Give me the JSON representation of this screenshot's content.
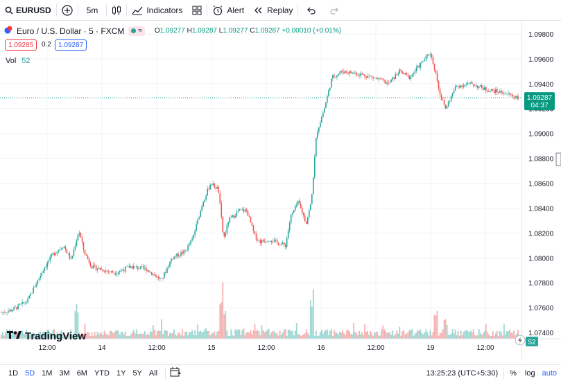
{
  "toolbar": {
    "symbol": "EURUSD",
    "interval": "5m",
    "indicators": "Indicators",
    "alert": "Alert",
    "replay": "Replay"
  },
  "legend": {
    "title": "Euro / U.S. Dollar · 5 · FXCM",
    "pill_glyph": "≈",
    "open_label": "O",
    "open": "1.09277",
    "high_label": "H",
    "high": "1.09287",
    "low_label": "L",
    "low": "1.09277",
    "close_label": "C",
    "close": "1.09287",
    "change": "+0.00010 (+0.01%)"
  },
  "quote": {
    "bid": "1.09285",
    "spread": "0.2",
    "ask": "1.09287"
  },
  "volume": {
    "label": "Vol",
    "value": "52",
    "badge": "52"
  },
  "price_axis": {
    "ticks": [
      "1.09800",
      "1.09600",
      "1.09400",
      "1.09200",
      "1.09000",
      "1.08800",
      "1.08600",
      "1.08400",
      "1.08200",
      "1.08000",
      "1.07800",
      "1.07600",
      "1.07400"
    ],
    "current_price": "1.09287",
    "countdown": "04:37"
  },
  "time_axis": {
    "ticks": [
      "12:00",
      "14",
      "12:00",
      "15",
      "12:00",
      "16",
      "12:00",
      "19",
      "12:00"
    ]
  },
  "bottom": {
    "ranges": [
      "1D",
      "5D",
      "1M",
      "3M",
      "6M",
      "YTD",
      "1Y",
      "5Y",
      "All"
    ],
    "active_range": "5D",
    "clock": "13:25:23 (UTC+5:30)",
    "percent": "%",
    "log": "log",
    "auto": "auto"
  },
  "logo": {
    "text": "TradingView"
  },
  "colors": {
    "up": "#26a69a",
    "down": "#ef5350",
    "grid": "#f0f3fa",
    "accent": "#2962ff",
    "price_label": "#089981"
  },
  "chart_data": {
    "type": "candlestick",
    "symbol": "EURUSD",
    "interval": "5m",
    "ylim": [
      1.0735,
      1.099
    ],
    "x_ticks": [
      "12:00",
      "14",
      "12:00",
      "15",
      "12:00",
      "16",
      "12:00",
      "19",
      "12:00"
    ],
    "close_path": [
      [
        0,
        1.0756
      ],
      [
        0.02,
        1.0758
      ],
      [
        0.05,
        1.0765
      ],
      [
        0.08,
        1.079
      ],
      [
        0.1,
        1.0803
      ],
      [
        0.12,
        1.081
      ],
      [
        0.135,
        1.0798
      ],
      [
        0.15,
        1.0822
      ],
      [
        0.16,
        1.0805
      ],
      [
        0.175,
        1.0793
      ],
      [
        0.2,
        1.079
      ],
      [
        0.22,
        1.0788
      ],
      [
        0.25,
        1.0793
      ],
      [
        0.28,
        1.0791
      ],
      [
        0.3,
        1.0785
      ],
      [
        0.31,
        1.0782
      ],
      [
        0.33,
        1.08
      ],
      [
        0.355,
        1.0805
      ],
      [
        0.37,
        1.0815
      ],
      [
        0.39,
        1.0845
      ],
      [
        0.405,
        1.086
      ],
      [
        0.42,
        1.0855
      ],
      [
        0.43,
        1.0815
      ],
      [
        0.44,
        1.083
      ],
      [
        0.46,
        1.0838
      ],
      [
        0.475,
        1.0838
      ],
      [
        0.49,
        1.0818
      ],
      [
        0.5,
        1.0813
      ],
      [
        0.52,
        1.0815
      ],
      [
        0.535,
        1.0812
      ],
      [
        0.55,
        1.081
      ],
      [
        0.56,
        1.0833
      ],
      [
        0.575,
        1.0845
      ],
      [
        0.59,
        1.0828
      ],
      [
        0.6,
        1.0845
      ],
      [
        0.61,
        1.09
      ],
      [
        0.625,
        1.092
      ],
      [
        0.64,
        1.0945
      ],
      [
        0.66,
        1.095
      ],
      [
        0.69,
        1.0948
      ],
      [
        0.72,
        1.0945
      ],
      [
        0.75,
        1.094
      ],
      [
        0.77,
        1.095
      ],
      [
        0.79,
        1.0945
      ],
      [
        0.81,
        1.0955
      ],
      [
        0.83,
        1.0965
      ],
      [
        0.84,
        1.095
      ],
      [
        0.85,
        1.093
      ],
      [
        0.86,
        1.092
      ],
      [
        0.88,
        1.0938
      ],
      [
        0.91,
        1.094
      ],
      [
        0.94,
        1.0935
      ],
      [
        0.97,
        1.0933
      ],
      [
        1,
        1.0929
      ]
    ],
    "last_price": 1.09287,
    "volume_last": 52
  }
}
